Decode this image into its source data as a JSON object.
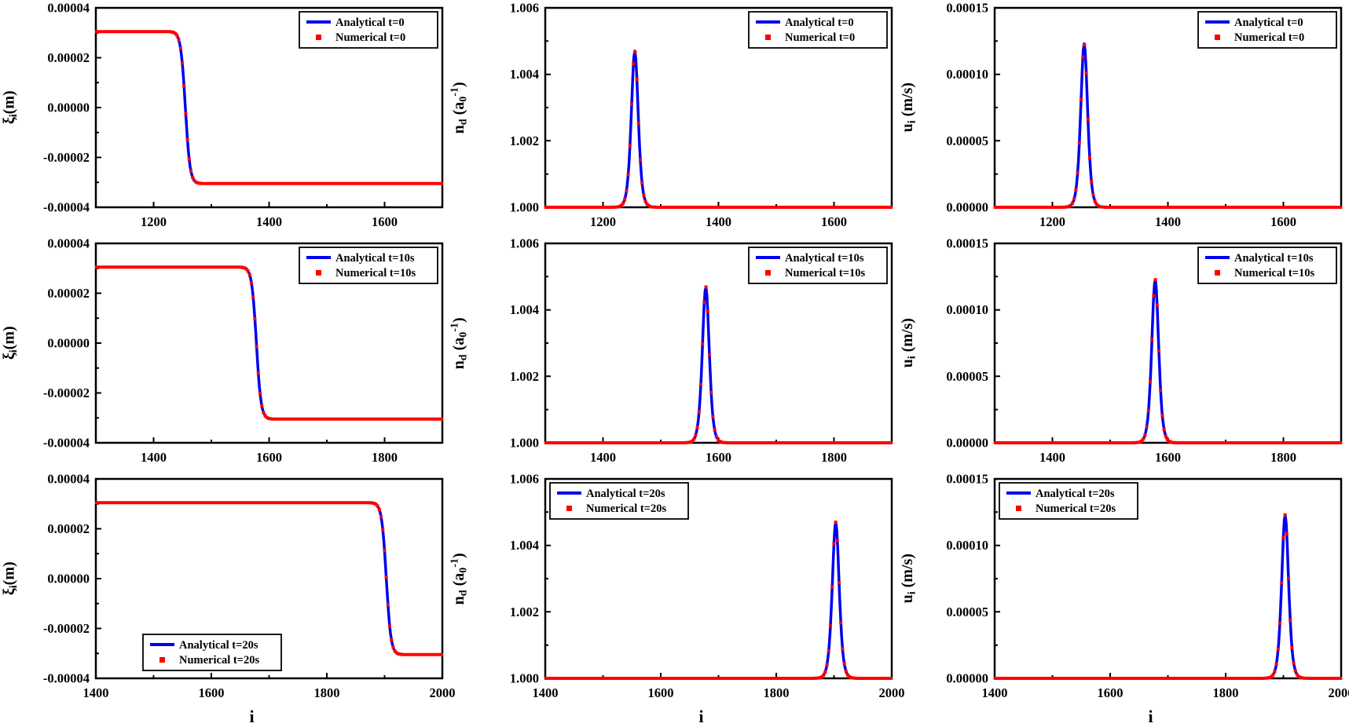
{
  "figure": {
    "background": "#ffffff",
    "axis_color": "#000000",
    "xlabel": "i",
    "series_styles": {
      "analytical": {
        "color": "#0000ee",
        "type": "line"
      },
      "numerical": {
        "color": "#ff0000",
        "type": "square-markers"
      }
    },
    "rows": [
      {
        "time_label": "t=0"
      },
      {
        "time_label": "t=10s"
      },
      {
        "time_label": "t=20s"
      }
    ],
    "columns": [
      {
        "ylabel_text": "ξ_i (m)",
        "ylabel": [
          {
            "t": "ξ"
          },
          {
            "t": "i",
            "sub": true
          },
          {
            "t": "(m)"
          }
        ]
      },
      {
        "ylabel_text": "n_d (a_0^-1)",
        "ylabel": [
          {
            "t": "n"
          },
          {
            "t": "d",
            "sub": true
          },
          {
            "t": " (a"
          },
          {
            "t": "0",
            "sub": true
          },
          {
            "t": "-1",
            "sup": true
          },
          {
            "t": ")"
          }
        ]
      },
      {
        "ylabel_text": "u_i (m/s)",
        "ylabel": [
          {
            "t": "u"
          },
          {
            "t": "i",
            "sub": true
          },
          {
            "t": " (m/s)"
          }
        ]
      }
    ]
  },
  "chart_data": [
    {
      "id": "r0c0",
      "row": 0,
      "col": 0,
      "type": "line",
      "title": "",
      "ylabel_text": "ξ_i (m)",
      "curve": {
        "shape": "kink",
        "center": 1255,
        "halfwidth": 8,
        "baseline": 0,
        "amplitude": 3.05e-05
      },
      "xlim": [
        1100,
        1700
      ],
      "xticks": [
        1200,
        1400,
        1600
      ],
      "xtick_labels": [
        "1200",
        "1400",
        "1600"
      ],
      "ylim": [
        -4e-05,
        4e-05
      ],
      "yticks": [
        -4e-05,
        -2e-05,
        0,
        2e-05,
        4e-05
      ],
      "ytick_labels": [
        "-0.00004",
        "-0.00002",
        "0.00000",
        "0.00002",
        "0.00004"
      ],
      "legend": {
        "position": "top-right",
        "entries": [
          "Analytical t=0",
          "Numerical t=0"
        ]
      }
    },
    {
      "id": "r0c1",
      "row": 0,
      "col": 1,
      "type": "line",
      "title": "",
      "ylabel_text": "n_d (a_0^-1)",
      "curve": {
        "shape": "peak",
        "center": 1255,
        "halfwidth": 8,
        "baseline": 1.0,
        "amplitude": 0.0047
      },
      "xlim": [
        1100,
        1700
      ],
      "xticks": [
        1200,
        1400,
        1600
      ],
      "xtick_labels": [
        "1200",
        "1400",
        "1600"
      ],
      "ylim": [
        1.0,
        1.006
      ],
      "yticks": [
        1.0,
        1.002,
        1.004,
        1.006
      ],
      "ytick_labels": [
        "1.000",
        "1.002",
        "1.004",
        "1.006"
      ],
      "legend": {
        "position": "top-right",
        "entries": [
          "Analytical t=0",
          "Numerical t=0"
        ]
      }
    },
    {
      "id": "r0c2",
      "row": 0,
      "col": 2,
      "type": "line",
      "title": "",
      "ylabel_text": "u_i (m/s)",
      "curve": {
        "shape": "peak",
        "center": 1255,
        "halfwidth": 8,
        "baseline": 0,
        "amplitude": 0.000123
      },
      "xlim": [
        1100,
        1700
      ],
      "xticks": [
        1200,
        1400,
        1600
      ],
      "xtick_labels": [
        "1200",
        "1400",
        "1600"
      ],
      "ylim": [
        0,
        0.00015
      ],
      "yticks": [
        0,
        5e-05,
        0.0001,
        0.00015
      ],
      "ytick_labels": [
        "0.00000",
        "0.00005",
        "0.00010",
        "0.00015"
      ],
      "legend": {
        "position": "top-right",
        "entries": [
          "Analytical t=0",
          "Numerical t=0"
        ]
      }
    },
    {
      "id": "r1c0",
      "row": 1,
      "col": 0,
      "type": "line",
      "title": "",
      "ylabel_text": "ξ_i (m)",
      "curve": {
        "shape": "kink",
        "center": 1578,
        "halfwidth": 8,
        "baseline": 0,
        "amplitude": 3.05e-05
      },
      "xlim": [
        1300,
        1900
      ],
      "xticks": [
        1400,
        1600,
        1800
      ],
      "xtick_labels": [
        "1400",
        "1600",
        "1800"
      ],
      "ylim": [
        -4e-05,
        4e-05
      ],
      "yticks": [
        -4e-05,
        -2e-05,
        0,
        2e-05,
        4e-05
      ],
      "ytick_labels": [
        "-0.00004",
        "-0.00002",
        "0.00000",
        "0.00002",
        "0.00004"
      ],
      "legend": {
        "position": "top-right",
        "entries": [
          "Analytical t=10s",
          "Numerical t=10s"
        ]
      }
    },
    {
      "id": "r1c1",
      "row": 1,
      "col": 1,
      "type": "line",
      "title": "",
      "ylabel_text": "n_d (a_0^-1)",
      "curve": {
        "shape": "peak",
        "center": 1578,
        "halfwidth": 8,
        "baseline": 1.0,
        "amplitude": 0.0047
      },
      "xlim": [
        1300,
        1900
      ],
      "xticks": [
        1400,
        1600,
        1800
      ],
      "xtick_labels": [
        "1400",
        "1600",
        "1800"
      ],
      "ylim": [
        1.0,
        1.006
      ],
      "yticks": [
        1.0,
        1.002,
        1.004,
        1.006
      ],
      "ytick_labels": [
        "1.000",
        "1.002",
        "1.004",
        "1.006"
      ],
      "legend": {
        "position": "top-right",
        "entries": [
          "Analytical t=10s",
          "Numerical t=10s"
        ]
      }
    },
    {
      "id": "r1c2",
      "row": 1,
      "col": 2,
      "type": "line",
      "title": "",
      "ylabel_text": "u_i (m/s)",
      "curve": {
        "shape": "peak",
        "center": 1578,
        "halfwidth": 8,
        "baseline": 0,
        "amplitude": 0.000123
      },
      "xlim": [
        1300,
        1900
      ],
      "xticks": [
        1400,
        1600,
        1800
      ],
      "xtick_labels": [
        "1400",
        "1600",
        "1800"
      ],
      "ylim": [
        0,
        0.00015
      ],
      "yticks": [
        0,
        5e-05,
        0.0001,
        0.00015
      ],
      "ytick_labels": [
        "0.00000",
        "0.00005",
        "0.00010",
        "0.00015"
      ],
      "legend": {
        "position": "top-right",
        "entries": [
          "Analytical t=10s",
          "Numerical t=10s"
        ]
      }
    },
    {
      "id": "r2c0",
      "row": 2,
      "col": 0,
      "type": "line",
      "title": "",
      "ylabel_text": "ξ_i (m)",
      "curve": {
        "shape": "kink",
        "center": 1903,
        "halfwidth": 8,
        "baseline": 0,
        "amplitude": 3.05e-05
      },
      "xlim": [
        1400,
        2000
      ],
      "xticks": [
        1400,
        1600,
        1800,
        2000
      ],
      "xtick_labels": [
        "1400",
        "1600",
        "1800",
        "2000"
      ],
      "ylim": [
        -4e-05,
        4e-05
      ],
      "yticks": [
        -4e-05,
        -2e-05,
        0,
        2e-05,
        4e-05
      ],
      "ytick_labels": [
        "-0.00004",
        "-0.00002",
        "0.00000",
        "0.00002",
        "0.00004"
      ],
      "legend": {
        "position": "bottom-left",
        "entries": [
          "Analytical t=20s",
          "Numerical t=20s"
        ]
      }
    },
    {
      "id": "r2c1",
      "row": 2,
      "col": 1,
      "type": "line",
      "title": "",
      "ylabel_text": "n_d (a_0^-1)",
      "curve": {
        "shape": "peak",
        "center": 1903,
        "halfwidth": 8,
        "baseline": 1.0,
        "amplitude": 0.0047
      },
      "xlim": [
        1400,
        2000
      ],
      "xticks": [
        1400,
        1600,
        1800,
        2000
      ],
      "xtick_labels": [
        "1400",
        "1600",
        "1800",
        "2000"
      ],
      "ylim": [
        1.0,
        1.006
      ],
      "yticks": [
        1.0,
        1.002,
        1.004,
        1.006
      ],
      "ytick_labels": [
        "1.000",
        "1.002",
        "1.004",
        "1.006"
      ],
      "legend": {
        "position": "top-left",
        "entries": [
          "Analytical t=20s",
          "Numerical t=20s"
        ]
      }
    },
    {
      "id": "r2c2",
      "row": 2,
      "col": 2,
      "type": "line",
      "title": "",
      "ylabel_text": "u_i (m/s)",
      "curve": {
        "shape": "peak",
        "center": 1903,
        "halfwidth": 8,
        "baseline": 0,
        "amplitude": 0.000123
      },
      "xlim": [
        1400,
        2000
      ],
      "xticks": [
        1400,
        1600,
        1800,
        2000
      ],
      "xtick_labels": [
        "1400",
        "1600",
        "1800",
        "2000"
      ],
      "ylim": [
        0,
        0.00015
      ],
      "yticks": [
        0,
        5e-05,
        0.0001,
        0.00015
      ],
      "ytick_labels": [
        "0.00000",
        "0.00005",
        "0.00010",
        "0.00015"
      ],
      "legend": {
        "position": "top-left",
        "entries": [
          "Analytical t=20s",
          "Numerical t=20s"
        ]
      }
    }
  ]
}
